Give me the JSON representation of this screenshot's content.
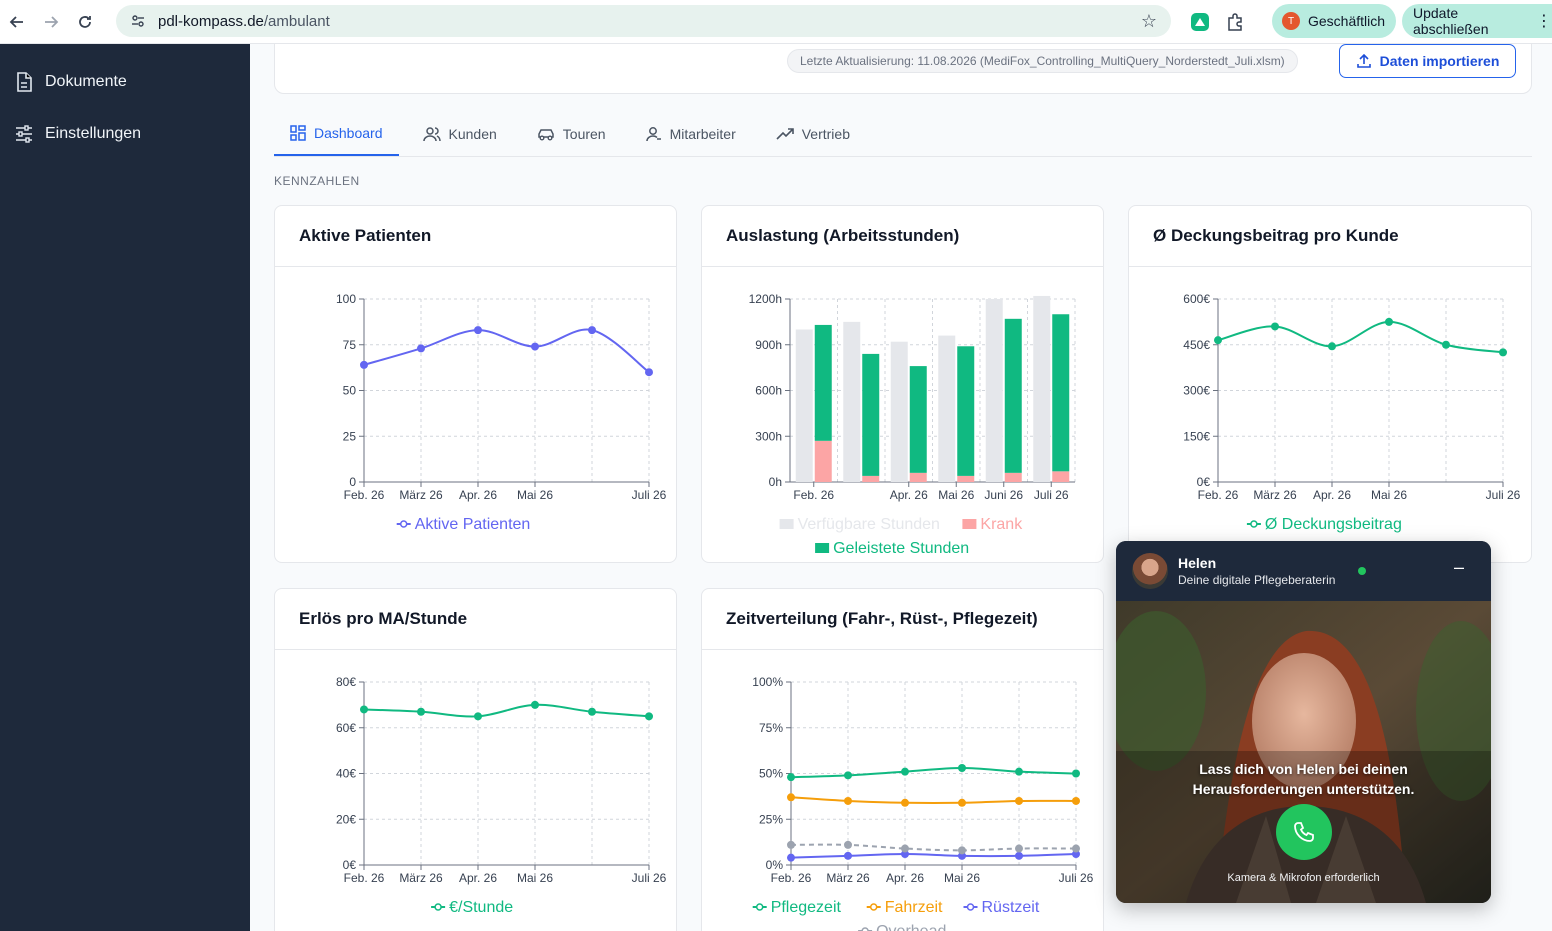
{
  "browser": {
    "url_host": "pdl-kompass.de",
    "url_path": "/ambulant",
    "profile_label": "Geschäftlich",
    "profile_initial": "T",
    "update_label": "Update abschließen"
  },
  "sidebar": {
    "items": [
      {
        "label": "Dokumente",
        "icon": "document-icon"
      },
      {
        "label": "Einstellungen",
        "icon": "sliders-icon"
      }
    ]
  },
  "header": {
    "last_update": "Letzte Aktualisierung: 11.08.2026 (MediFox_Controlling_MultiQuery_Norderstedt_Juli.xlsm)",
    "import_label": "Daten importieren"
  },
  "tabs": [
    {
      "label": "Dashboard",
      "active": true
    },
    {
      "label": "Kunden",
      "active": false
    },
    {
      "label": "Touren",
      "active": false
    },
    {
      "label": "Mitarbeiter",
      "active": false
    },
    {
      "label": "Vertrieb",
      "active": false
    }
  ],
  "section_label": "KENNZAHLEN",
  "chart_data": [
    {
      "id": "patients",
      "type": "line",
      "title": "Aktive Patienten",
      "x_ticks": [
        "Feb. 26",
        "März 26",
        "Apr. 26",
        "Mai 26",
        "Juli 26"
      ],
      "y_ticks": [
        "0",
        "25",
        "50",
        "75",
        "100"
      ],
      "ylim": [
        0,
        100
      ],
      "grid": true,
      "legend_position": "bottom",
      "series": [
        {
          "name": "Aktive Patienten",
          "color": "#6366f1",
          "values": [
            64,
            73,
            83,
            74,
            83,
            60
          ]
        }
      ]
    },
    {
      "id": "capacity",
      "type": "bar",
      "title": "Auslastung (Arbeitsstunden)",
      "x_ticks": [
        "Feb. 26",
        "Apr. 26",
        "Mai 26",
        "Juni 26",
        "Juli 26"
      ],
      "y_ticks": [
        "0h",
        "300h",
        "600h",
        "900h",
        "1200h"
      ],
      "ylim": [
        0,
        1200
      ],
      "grid": true,
      "legend_position": "bottom",
      "series": [
        {
          "name": "Verfügbare Stunden",
          "color": "#e5e7eb",
          "values": [
            1000,
            1050,
            920,
            960,
            1200,
            1220
          ]
        },
        {
          "name": "Krank",
          "color": "#fca5a5",
          "values": [
            270,
            40,
            60,
            40,
            60,
            70
          ]
        },
        {
          "name": "Geleistete Stunden",
          "color": "#10b981",
          "values": [
            760,
            800,
            700,
            850,
            1010,
            1030
          ]
        }
      ]
    },
    {
      "id": "margin",
      "type": "line",
      "title": "Ø Deckungsbeitrag pro Kunde",
      "x_ticks": [
        "Feb. 26",
        "März 26",
        "Apr. 26",
        "Mai 26",
        "Juli 26"
      ],
      "y_ticks": [
        "0€",
        "150€",
        "300€",
        "450€",
        "600€"
      ],
      "ylim": [
        0,
        600
      ],
      "grid": true,
      "legend_position": "bottom",
      "series": [
        {
          "name": "Ø Deckungsbeitrag",
          "color": "#10b981",
          "values": [
            465,
            510,
            445,
            525,
            450,
            425
          ]
        }
      ]
    },
    {
      "id": "revenue",
      "type": "line",
      "title": "Erlös pro MA/Stunde",
      "x_ticks": [
        "Feb. 26",
        "März 26",
        "Apr. 26",
        "Mai 26",
        "Juli 26"
      ],
      "y_ticks": [
        "0€",
        "20€",
        "40€",
        "60€",
        "80€"
      ],
      "ylim": [
        0,
        80
      ],
      "grid": true,
      "legend_position": "bottom",
      "series": [
        {
          "name": "€/Stunde",
          "color": "#10b981",
          "values": [
            68,
            67,
            65,
            70,
            67,
            65
          ]
        }
      ]
    },
    {
      "id": "time",
      "type": "line",
      "title": "Zeitverteilung (Fahr-, Rüst-, Pflegezeit)",
      "x_ticks": [
        "Feb. 26",
        "März 26",
        "Apr. 26",
        "Mai 26",
        "Juli 26"
      ],
      "y_ticks": [
        "0%",
        "25%",
        "50%",
        "75%",
        "100%"
      ],
      "ylim": [
        0,
        100
      ],
      "grid": true,
      "legend_position": "bottom",
      "series": [
        {
          "name": "Pflegezeit",
          "color": "#10b981",
          "values": [
            48,
            49,
            51,
            53,
            51,
            50
          ]
        },
        {
          "name": "Fahrzeit",
          "color": "#f59e0b",
          "values": [
            37,
            35,
            34,
            34,
            35,
            35
          ]
        },
        {
          "name": "Rüstzeit",
          "color": "#6366f1",
          "values": [
            4,
            5,
            6,
            5,
            5,
            6
          ]
        },
        {
          "name": "Overhead",
          "color": "#9ca3af",
          "values": [
            11,
            11,
            9,
            8,
            9,
            9
          ],
          "dashed": true
        }
      ]
    }
  ],
  "assistant": {
    "name": "Helen",
    "subtitle": "Deine digitale Pflegeberaterin",
    "message_line1": "Lass dich von Helen bei deinen",
    "message_line2": "Herausforderungen unterstützen.",
    "hint": "Kamera & Mikrofon erforderlich",
    "minimize_label": "–"
  }
}
